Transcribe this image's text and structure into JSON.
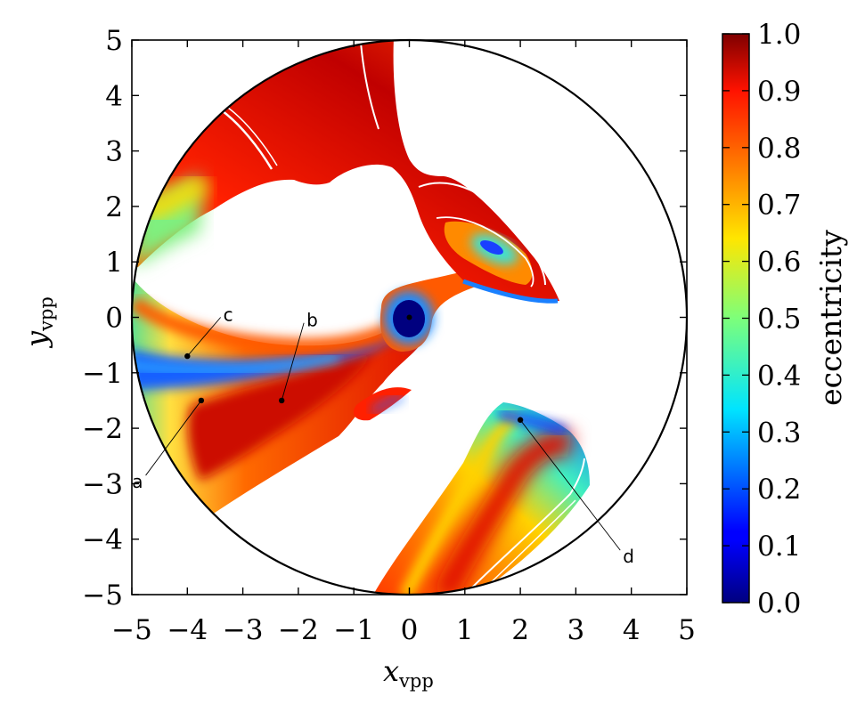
{
  "chart_data": {
    "type": "heatmap",
    "title": "",
    "xlabel": {
      "main": "x",
      "sub": "vpp"
    },
    "ylabel": {
      "main": "y",
      "sub": "vpp"
    },
    "xlim": [
      -5,
      5
    ],
    "ylim": [
      -5,
      5
    ],
    "x_ticks": [
      -5,
      -4,
      -3,
      -2,
      -1,
      0,
      1,
      2,
      3,
      4,
      5
    ],
    "y_ticks": [
      -5,
      -4,
      -3,
      -2,
      -1,
      0,
      1,
      2,
      3,
      4,
      5
    ],
    "x_tick_labels": [
      "−5",
      "−4",
      "−3",
      "−2",
      "−1",
      "0",
      "1",
      "2",
      "3",
      "4",
      "5"
    ],
    "y_tick_labels": [
      "−5",
      "−4",
      "−3",
      "−2",
      "−1",
      "0",
      "1",
      "2",
      "3",
      "4",
      "5"
    ],
    "boundary_circle_radius": 5,
    "colorbar": {
      "label": "eccentricity",
      "range": [
        0.0,
        1.0
      ],
      "ticks": [
        0.0,
        0.1,
        0.2,
        0.3,
        0.4,
        0.5,
        0.6,
        0.7,
        0.8,
        0.9,
        1.0
      ],
      "tick_labels": [
        "0.0",
        "0.1",
        "0.2",
        "0.3",
        "0.4",
        "0.5",
        "0.6",
        "0.7",
        "0.8",
        "0.9",
        "1.0"
      ],
      "colormap": "jet"
    },
    "annotated_points": [
      {
        "label": "a",
        "x": -3.75,
        "y": -1.5,
        "label_x": -4.75,
        "label_y": -2.85
      },
      {
        "label": "b",
        "x": -2.3,
        "y": -1.5,
        "label_x": -1.9,
        "label_y": -0.1
      },
      {
        "label": "c",
        "x": -4.0,
        "y": -0.7,
        "label_x": -3.4,
        "label_y": 0.0
      },
      {
        "label": "d",
        "x": 2.0,
        "y": -1.85,
        "label_x": 3.8,
        "label_y": -4.2
      }
    ],
    "center_point": {
      "x": 0.0,
      "y": 0.0
    },
    "grid": false,
    "legend": "none"
  },
  "colors": {
    "jet_stops": [
      "#00007f",
      "#0000ff",
      "#007fff",
      "#00ffff",
      "#7fff7f",
      "#ffff00",
      "#ff7f00",
      "#ff0000",
      "#7f0000"
    ],
    "axis": "#000000",
    "background": "#ffffff"
  }
}
